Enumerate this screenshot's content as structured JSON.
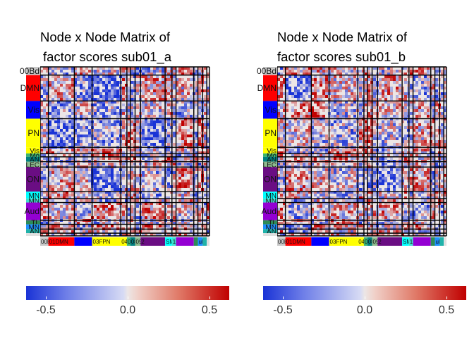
{
  "chart_data": [
    {
      "type": "heatmap",
      "title_lines": [
        "Node x Node Matrix of",
        "factor scores sub01_a"
      ],
      "row_labels": [
        "00Bd",
        "DMN",
        "Vis",
        "PN",
        "Vis",
        "Mo",
        "AN",
        "LEC",
        "ON",
        "MN",
        "MN",
        "Aud",
        "TL",
        "MN",
        "AN"
      ],
      "col_labels": [
        "00Bd",
        "01DMN",
        "",
        "03FPN",
        "04",
        "06",
        "0805",
        "09CON",
        "2",
        "SMN",
        "13au",
        "",
        "",
        "ul"
      ],
      "legend": {
        "min": -0.6,
        "max": 0.6,
        "ticks": [
          -0.5,
          0.0,
          0.5
        ],
        "tick_labels": [
          "-0.5",
          "0.0",
          "0.5"
        ],
        "colors": {
          "low": "#1a33d6",
          "mid": "#ece6e6",
          "high": "#c00000"
        }
      }
    },
    {
      "type": "heatmap",
      "title_lines": [
        "Node x Node Matrix of",
        "factor scores sub01_b"
      ],
      "row_labels": [
        "00Bd",
        "DMN",
        "Vis",
        "PN",
        "Vis",
        "Mo",
        "AN",
        "LEC",
        "ON",
        "MN",
        "MN",
        "Aud",
        "TL",
        "MN",
        "AN"
      ],
      "col_labels": [
        "00Bd",
        "01DMN",
        "",
        "03FPN",
        "04",
        "06",
        "0805",
        "09CON",
        "2",
        "SMN",
        "13au",
        "",
        "",
        "ul"
      ],
      "legend": {
        "min": -0.6,
        "max": 0.6,
        "ticks": [
          -0.5,
          0.0,
          0.5
        ],
        "tick_labels": [
          "-0.5",
          "0.0",
          "0.5"
        ],
        "colors": {
          "low": "#1a33d6",
          "mid": "#ece6e6",
          "high": "#c00000"
        }
      }
    }
  ],
  "network_colors": [
    "#c8c8c8",
    "#ff0000",
    "#0000ff",
    "#ffff00",
    "#ffff00",
    "#3cb371",
    "#008080",
    "#8fbc8f",
    "#6a0d83",
    "#00ffff",
    "#40e0d0",
    "#9400d3",
    "#2e8b57",
    "#1e90ff",
    "#20b2aa",
    "#e0e0e0"
  ],
  "network_sizes": [
    1.2,
    3.8,
    2.6,
    4.2,
    0.9,
    0.5,
    0.7,
    0.8,
    3.6,
    1.0,
    0.6,
    2.6,
    0.6,
    0.7,
    0.6,
    0.4
  ]
}
